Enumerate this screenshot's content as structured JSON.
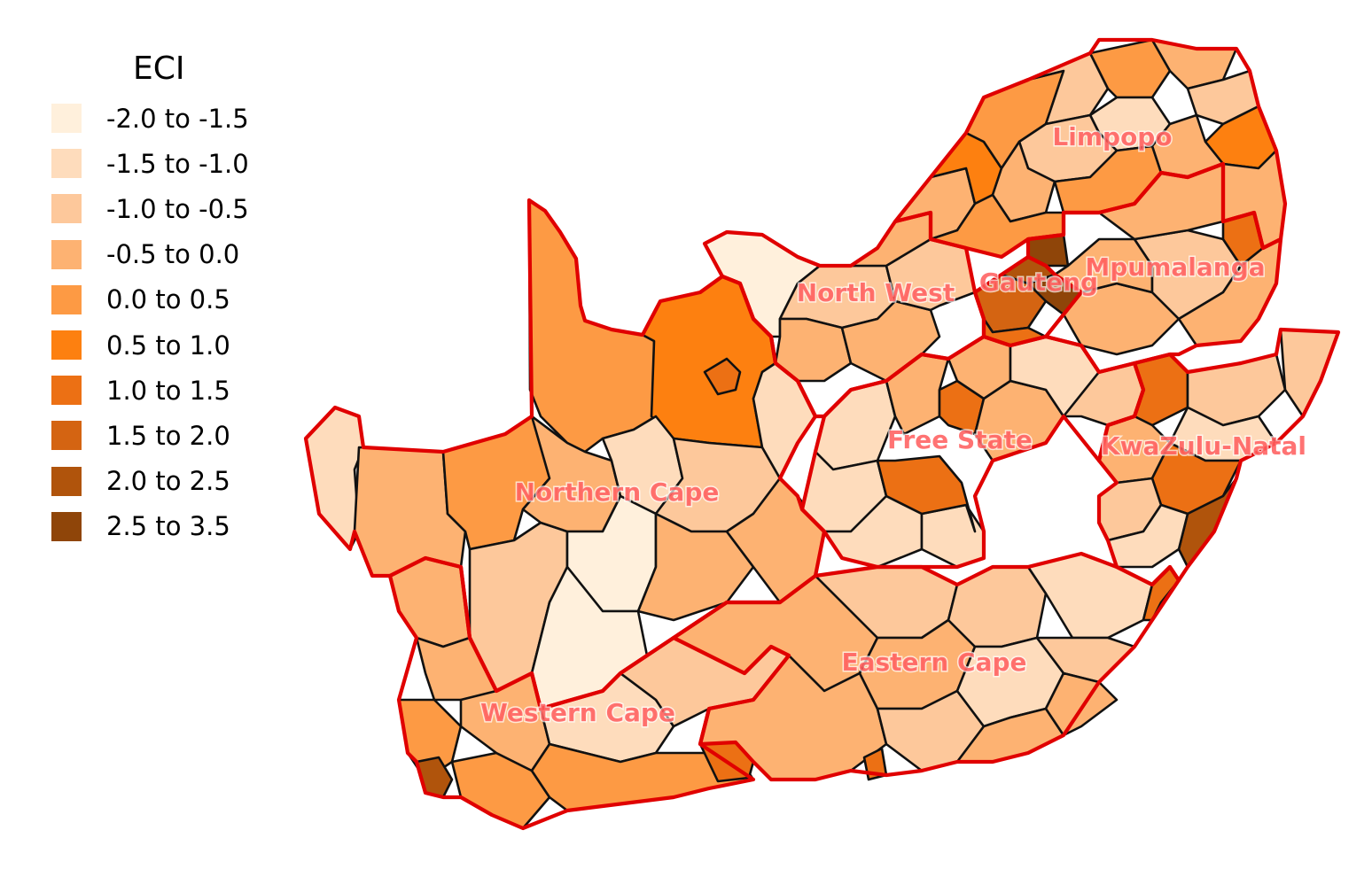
{
  "legend": {
    "title": "ECI",
    "items": [
      {
        "label": "-2.0 to -1.5",
        "color": "#fff0dc"
      },
      {
        "label": "-1.5 to -1.0",
        "color": "#fedcbc"
      },
      {
        "label": "-1.0 to -0.5",
        "color": "#fdc89b"
      },
      {
        "label": "-0.5 to 0.0",
        "color": "#fdb272"
      },
      {
        "label": "0.0 to 0.5",
        "color": "#fd9a44"
      },
      {
        "label": "0.5 to 1.0",
        "color": "#fd8010"
      },
      {
        "label": "1.0 to 1.5",
        "color": "#ec7014"
      },
      {
        "label": "1.5 to 2.0",
        "color": "#d46412"
      },
      {
        "label": "2.0 to 2.5",
        "color": "#b0540c"
      },
      {
        "label": "2.5 to 3.5",
        "color": "#8f4509"
      }
    ]
  },
  "provinces": {
    "limpopo": "Limpopo",
    "mpumalanga": "Mpumalanga",
    "north_west": "North West",
    "gauteng": "Gauteng",
    "free_state": "Free State",
    "kwazulu_natal": "KwaZulu-Natal",
    "northern_cape": "Northern Cape",
    "eastern_cape": "Eastern Cape",
    "western_cape": "Western Cape"
  },
  "colors": {
    "province_border": "#e00000",
    "municipality_border": "#111111",
    "province_label": "#ff5a5a"
  }
}
